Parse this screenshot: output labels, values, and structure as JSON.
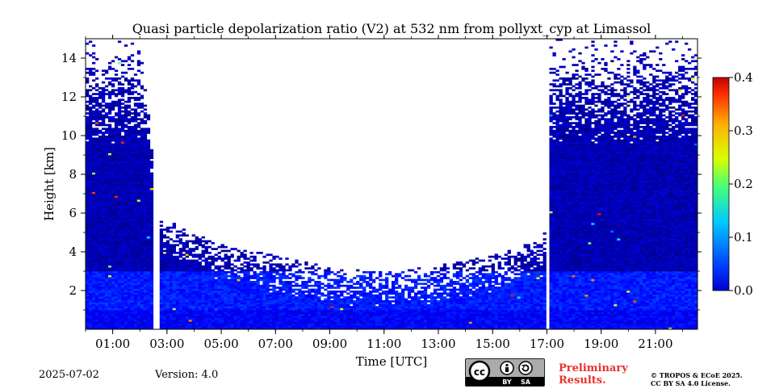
{
  "chart_data": {
    "type": "heatmap",
    "title": "Quasi particle depolarization ratio (V2) at 532 nm from pollyxt_cyp at Limassol",
    "xlabel": "Time [UTC]",
    "ylabel": "Height [km]",
    "x_ticks": [
      "01:00",
      "03:00",
      "05:00",
      "07:00",
      "09:00",
      "11:00",
      "13:00",
      "15:00",
      "17:00",
      "19:00",
      "21:00"
    ],
    "x_range_hours": [
      0.0,
      22.55
    ],
    "y_ticks": [
      2,
      4,
      6,
      8,
      10,
      12,
      14
    ],
    "ylim": [
      0,
      15
    ],
    "colorbar": {
      "min": 0.0,
      "max": 0.4,
      "ticks": [
        "0.0",
        "0.1",
        "0.2",
        "0.3",
        "0.4"
      ],
      "colormap": "jet"
    },
    "data_gaps_hours": [
      [
        2.55,
        2.7
      ],
      [
        16.95,
        17.1
      ]
    ],
    "signal_top_km": [
      {
        "time": 0.0,
        "top": 14.8
      },
      {
        "time": 2.0,
        "top": 14.8
      },
      {
        "time": 2.7,
        "top": 5.0
      },
      {
        "time": 5.0,
        "top": 3.6
      },
      {
        "time": 9.0,
        "top": 2.4
      },
      {
        "time": 11.0,
        "top": 2.2
      },
      {
        "time": 13.0,
        "top": 2.5
      },
      {
        "time": 15.0,
        "top": 3.0
      },
      {
        "time": 16.9,
        "top": 3.9
      },
      {
        "time": 17.1,
        "top": 14.8
      },
      {
        "time": 22.5,
        "top": 14.8
      }
    ],
    "typical_values": {
      "boundary_layer_below_3km": 0.06,
      "free_troposphere": 0.02
    }
  },
  "footer": {
    "date": "2025-07-02",
    "version": "Version: 4.0",
    "preliminary": [
      "Preliminary",
      "Results."
    ],
    "license": [
      "© TROPOS & ECoE 2025.",
      "CC BY SA 4.0 License."
    ],
    "cc_badge": [
      "cc",
      "BY",
      "SA"
    ]
  },
  "colors": {
    "low": "#0a3fd9",
    "mid": "#00a6e0",
    "high": "#e5190d",
    "background": "#ffffff",
    "preliminary": "#e8312f"
  }
}
